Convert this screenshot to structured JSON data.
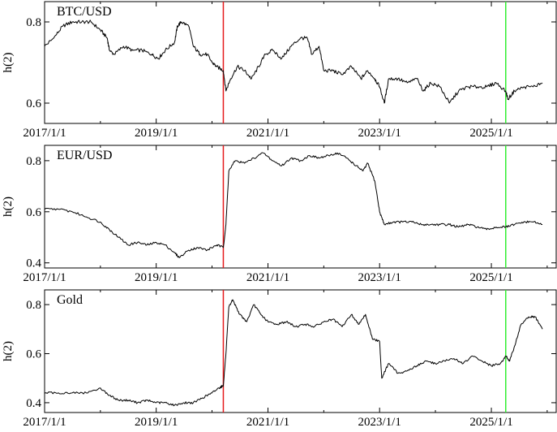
{
  "chart_data": [
    {
      "type": "line",
      "title": "BTC/USD",
      "ylabel": "h(2)",
      "xlim": [
        "2017-01-01",
        "2026-03-01"
      ],
      "ylim": [
        0.55,
        0.85
      ],
      "yticks": [
        0.6,
        0.8
      ],
      "ytick_labels": [
        "0.6",
        "0.8"
      ],
      "xticks": [
        "2017-01-01",
        "2019-01-01",
        "2021-01-01",
        "2023-01-01",
        "2025-01-01"
      ],
      "xtick_labels": [
        "2017/1/1",
        "2019/1/1",
        "2021/1/1",
        "2023/1/1",
        "2025/1/1"
      ],
      "markers": [
        {
          "date": "2020-03-15",
          "color": "#e41a1c"
        },
        {
          "date": "2025-04-05",
          "color": "#33ee33"
        }
      ],
      "grid": false,
      "series": [
        {
          "color": "#000000",
          "points": [
            [
              "2017-01-01",
              0.74
            ],
            [
              "2017-03-01",
              0.76
            ],
            [
              "2017-05-01",
              0.79
            ],
            [
              "2017-07-01",
              0.8
            ],
            [
              "2017-09-01",
              0.8
            ],
            [
              "2017-11-01",
              0.8
            ],
            [
              "2018-01-01",
              0.78
            ],
            [
              "2018-02-15",
              0.76
            ],
            [
              "2018-03-01",
              0.73
            ],
            [
              "2018-04-01",
              0.72
            ],
            [
              "2018-06-01",
              0.74
            ],
            [
              "2018-08-01",
              0.73
            ],
            [
              "2018-10-01",
              0.73
            ],
            [
              "2018-12-01",
              0.72
            ],
            [
              "2019-01-15",
              0.71
            ],
            [
              "2019-03-01",
              0.73
            ],
            [
              "2019-05-01",
              0.75
            ],
            [
              "2019-05-20",
              0.79
            ],
            [
              "2019-06-15",
              0.8
            ],
            [
              "2019-08-01",
              0.79
            ],
            [
              "2019-09-01",
              0.74
            ],
            [
              "2019-10-15",
              0.72
            ],
            [
              "2019-12-01",
              0.72
            ],
            [
              "2020-01-01",
              0.7
            ],
            [
              "2020-02-01",
              0.69
            ],
            [
              "2020-03-15",
              0.68
            ],
            [
              "2020-04-01",
              0.63
            ],
            [
              "2020-05-01",
              0.66
            ],
            [
              "2020-06-15",
              0.69
            ],
            [
              "2020-08-01",
              0.68
            ],
            [
              "2020-09-15",
              0.66
            ],
            [
              "2020-11-01",
              0.69
            ],
            [
              "2020-12-15",
              0.72
            ],
            [
              "2021-02-01",
              0.73
            ],
            [
              "2021-04-01",
              0.71
            ],
            [
              "2021-06-01",
              0.74
            ],
            [
              "2021-08-01",
              0.76
            ],
            [
              "2021-09-15",
              0.76
            ],
            [
              "2021-10-15",
              0.72
            ],
            [
              "2021-12-01",
              0.74
            ],
            [
              "2022-01-01",
              0.68
            ],
            [
              "2022-03-01",
              0.68
            ],
            [
              "2022-05-01",
              0.67
            ],
            [
              "2022-07-01",
              0.69
            ],
            [
              "2022-09-01",
              0.66
            ],
            [
              "2022-10-15",
              0.68
            ],
            [
              "2022-12-01",
              0.66
            ],
            [
              "2023-01-01",
              0.64
            ],
            [
              "2023-02-01",
              0.6
            ],
            [
              "2023-03-01",
              0.66
            ],
            [
              "2023-05-01",
              0.66
            ],
            [
              "2023-07-01",
              0.65
            ],
            [
              "2023-09-01",
              0.66
            ],
            [
              "2023-10-15",
              0.63
            ],
            [
              "2023-12-01",
              0.65
            ],
            [
              "2024-02-01",
              0.64
            ],
            [
              "2024-04-01",
              0.6
            ],
            [
              "2024-06-01",
              0.63
            ],
            [
              "2024-08-01",
              0.64
            ],
            [
              "2024-10-01",
              0.64
            ],
            [
              "2024-12-01",
              0.64
            ],
            [
              "2025-02-01",
              0.65
            ],
            [
              "2025-04-05",
              0.63
            ],
            [
              "2025-04-20",
              0.61
            ],
            [
              "2025-06-01",
              0.63
            ],
            [
              "2025-08-01",
              0.64
            ],
            [
              "2025-10-01",
              0.64
            ],
            [
              "2025-12-01",
              0.65
            ]
          ]
        }
      ]
    },
    {
      "type": "line",
      "title": "EUR/USD",
      "ylabel": "h(2)",
      "xlim": [
        "2017-01-01",
        "2026-03-01"
      ],
      "ylim": [
        0.38,
        0.86
      ],
      "yticks": [
        0.4,
        0.6,
        0.8
      ],
      "ytick_labels": [
        "0.4",
        "0.6",
        "0.8"
      ],
      "xticks": [
        "2017-01-01",
        "2019-01-01",
        "2021-01-01",
        "2023-01-01",
        "2025-01-01"
      ],
      "xtick_labels": [
        "2017/1/1",
        "2019/1/1",
        "2021/1/1",
        "2023/1/1",
        "2025/1/1"
      ],
      "markers": [
        {
          "date": "2020-03-15",
          "color": "#e41a1c"
        },
        {
          "date": "2025-04-05",
          "color": "#33ee33"
        }
      ],
      "grid": false,
      "series": [
        {
          "color": "#000000",
          "points": [
            [
              "2017-01-01",
              0.61
            ],
            [
              "2017-04-01",
              0.61
            ],
            [
              "2017-07-01",
              0.6
            ],
            [
              "2017-10-01",
              0.58
            ],
            [
              "2018-01-01",
              0.56
            ],
            [
              "2018-03-01",
              0.53
            ],
            [
              "2018-05-01",
              0.5
            ],
            [
              "2018-07-01",
              0.47
            ],
            [
              "2018-09-01",
              0.48
            ],
            [
              "2018-11-01",
              0.47
            ],
            [
              "2019-01-01",
              0.48
            ],
            [
              "2019-03-01",
              0.47
            ],
            [
              "2019-05-01",
              0.44
            ],
            [
              "2019-06-01",
              0.42
            ],
            [
              "2019-08-01",
              0.45
            ],
            [
              "2019-10-01",
              0.46
            ],
            [
              "2019-12-01",
              0.45
            ],
            [
              "2020-02-01",
              0.47
            ],
            [
              "2020-03-15",
              0.46
            ],
            [
              "2020-04-01",
              0.55
            ],
            [
              "2020-04-20",
              0.76
            ],
            [
              "2020-06-01",
              0.8
            ],
            [
              "2020-08-01",
              0.79
            ],
            [
              "2020-10-01",
              0.81
            ],
            [
              "2020-12-01",
              0.83
            ],
            [
              "2021-02-01",
              0.8
            ],
            [
              "2021-04-01",
              0.78
            ],
            [
              "2021-06-01",
              0.81
            ],
            [
              "2021-08-01",
              0.8
            ],
            [
              "2021-10-01",
              0.82
            ],
            [
              "2021-12-01",
              0.81
            ],
            [
              "2022-02-01",
              0.82
            ],
            [
              "2022-04-01",
              0.83
            ],
            [
              "2022-06-01",
              0.81
            ],
            [
              "2022-08-01",
              0.78
            ],
            [
              "2022-09-15",
              0.76
            ],
            [
              "2022-10-15",
              0.79
            ],
            [
              "2022-12-01",
              0.72
            ],
            [
              "2023-01-01",
              0.6
            ],
            [
              "2023-02-01",
              0.55
            ],
            [
              "2023-04-01",
              0.56
            ],
            [
              "2023-06-01",
              0.56
            ],
            [
              "2023-08-01",
              0.56
            ],
            [
              "2023-10-01",
              0.55
            ],
            [
              "2023-12-01",
              0.55
            ],
            [
              "2024-02-01",
              0.55
            ],
            [
              "2024-04-01",
              0.55
            ],
            [
              "2024-06-01",
              0.54
            ],
            [
              "2024-08-01",
              0.55
            ],
            [
              "2024-10-01",
              0.54
            ],
            [
              "2024-12-01",
              0.53
            ],
            [
              "2025-02-01",
              0.54
            ],
            [
              "2025-04-05",
              0.54
            ],
            [
              "2025-06-01",
              0.55
            ],
            [
              "2025-08-01",
              0.56
            ],
            [
              "2025-10-01",
              0.56
            ],
            [
              "2025-12-01",
              0.55
            ]
          ]
        }
      ]
    },
    {
      "type": "line",
      "title": "Gold",
      "ylabel": "h(2)",
      "xlim": [
        "2017-01-01",
        "2026-03-01"
      ],
      "ylim": [
        0.36,
        0.86
      ],
      "yticks": [
        0.4,
        0.6,
        0.8
      ],
      "ytick_labels": [
        "0.4",
        "0.6",
        "0.8"
      ],
      "xticks": [
        "2017-01-01",
        "2019-01-01",
        "2021-01-01",
        "2023-01-01",
        "2025-01-01"
      ],
      "xtick_labels": [
        "2017/1/1",
        "2019/1/1",
        "2021/1/1",
        "2023/1/1",
        "2025/1/1"
      ],
      "markers": [
        {
          "date": "2020-03-15",
          "color": "#e41a1c"
        },
        {
          "date": "2025-04-05",
          "color": "#33ee33"
        }
      ],
      "grid": false,
      "series": [
        {
          "color": "#000000",
          "points": [
            [
              "2017-01-01",
              0.44
            ],
            [
              "2017-04-01",
              0.44
            ],
            [
              "2017-07-01",
              0.44
            ],
            [
              "2017-10-01",
              0.44
            ],
            [
              "2018-01-01",
              0.46
            ],
            [
              "2018-03-01",
              0.43
            ],
            [
              "2018-05-01",
              0.41
            ],
            [
              "2018-07-01",
              0.41
            ],
            [
              "2018-09-01",
              0.4
            ],
            [
              "2018-11-01",
              0.41
            ],
            [
              "2019-01-01",
              0.4
            ],
            [
              "2019-03-01",
              0.4
            ],
            [
              "2019-05-01",
              0.39
            ],
            [
              "2019-07-01",
              0.4
            ],
            [
              "2019-09-01",
              0.4
            ],
            [
              "2019-11-01",
              0.42
            ],
            [
              "2020-01-01",
              0.44
            ],
            [
              "2020-02-15",
              0.46
            ],
            [
              "2020-03-15",
              0.47
            ],
            [
              "2020-04-01",
              0.6
            ],
            [
              "2020-04-20",
              0.79
            ],
            [
              "2020-05-15",
              0.82
            ],
            [
              "2020-07-01",
              0.76
            ],
            [
              "2020-08-15",
              0.73
            ],
            [
              "2020-10-01",
              0.8
            ],
            [
              "2020-11-15",
              0.76
            ],
            [
              "2021-01-01",
              0.73
            ],
            [
              "2021-03-01",
              0.72
            ],
            [
              "2021-05-01",
              0.73
            ],
            [
              "2021-07-01",
              0.71
            ],
            [
              "2021-09-01",
              0.72
            ],
            [
              "2021-11-01",
              0.71
            ],
            [
              "2022-01-01",
              0.73
            ],
            [
              "2022-03-01",
              0.74
            ],
            [
              "2022-05-01",
              0.71
            ],
            [
              "2022-07-01",
              0.76
            ],
            [
              "2022-08-15",
              0.72
            ],
            [
              "2022-10-01",
              0.76
            ],
            [
              "2022-11-15",
              0.66
            ],
            [
              "2023-01-01",
              0.65
            ],
            [
              "2023-01-15",
              0.5
            ],
            [
              "2023-03-01",
              0.56
            ],
            [
              "2023-05-01",
              0.52
            ],
            [
              "2023-07-01",
              0.53
            ],
            [
              "2023-09-01",
              0.55
            ],
            [
              "2023-11-01",
              0.57
            ],
            [
              "2024-01-01",
              0.56
            ],
            [
              "2024-03-01",
              0.57
            ],
            [
              "2024-05-01",
              0.58
            ],
            [
              "2024-07-01",
              0.56
            ],
            [
              "2024-09-01",
              0.59
            ],
            [
              "2024-11-01",
              0.57
            ],
            [
              "2025-01-01",
              0.55
            ],
            [
              "2025-03-01",
              0.56
            ],
            [
              "2025-04-05",
              0.59
            ],
            [
              "2025-05-01",
              0.57
            ],
            [
              "2025-06-01",
              0.63
            ],
            [
              "2025-07-15",
              0.72
            ],
            [
              "2025-09-01",
              0.75
            ],
            [
              "2025-10-15",
              0.75
            ],
            [
              "2025-12-01",
              0.7
            ]
          ]
        }
      ]
    }
  ]
}
